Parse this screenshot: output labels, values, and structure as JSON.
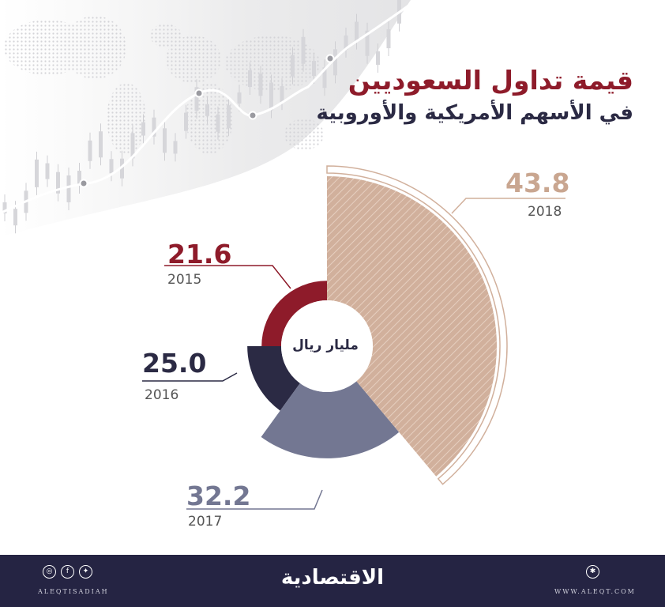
{
  "title": "قيمة تداول السعوديين",
  "subtitle": "في الأسهم الأمريكية والأوروبية",
  "unit_label": "مليار ريال",
  "chart_data": {
    "type": "pie",
    "categories": [
      "2015",
      "2016",
      "2017",
      "2018"
    ],
    "values": [
      21.6,
      25.0,
      32.2,
      43.8
    ],
    "value_labels": [
      "21.6",
      "25.0",
      "32.2",
      "43.8"
    ],
    "colors": [
      "#8e1b2a",
      "#2b2a44",
      "#737792",
      "#d1b09c"
    ]
  },
  "footer": {
    "handle": "ALEQTISADIAH",
    "brand": "الاقتصادية",
    "website": "WWW.ALEQT.COM",
    "social_icons": [
      "instagram-icon",
      "facebook-icon",
      "twitter-icon"
    ],
    "web_icon": "globe-icon"
  }
}
